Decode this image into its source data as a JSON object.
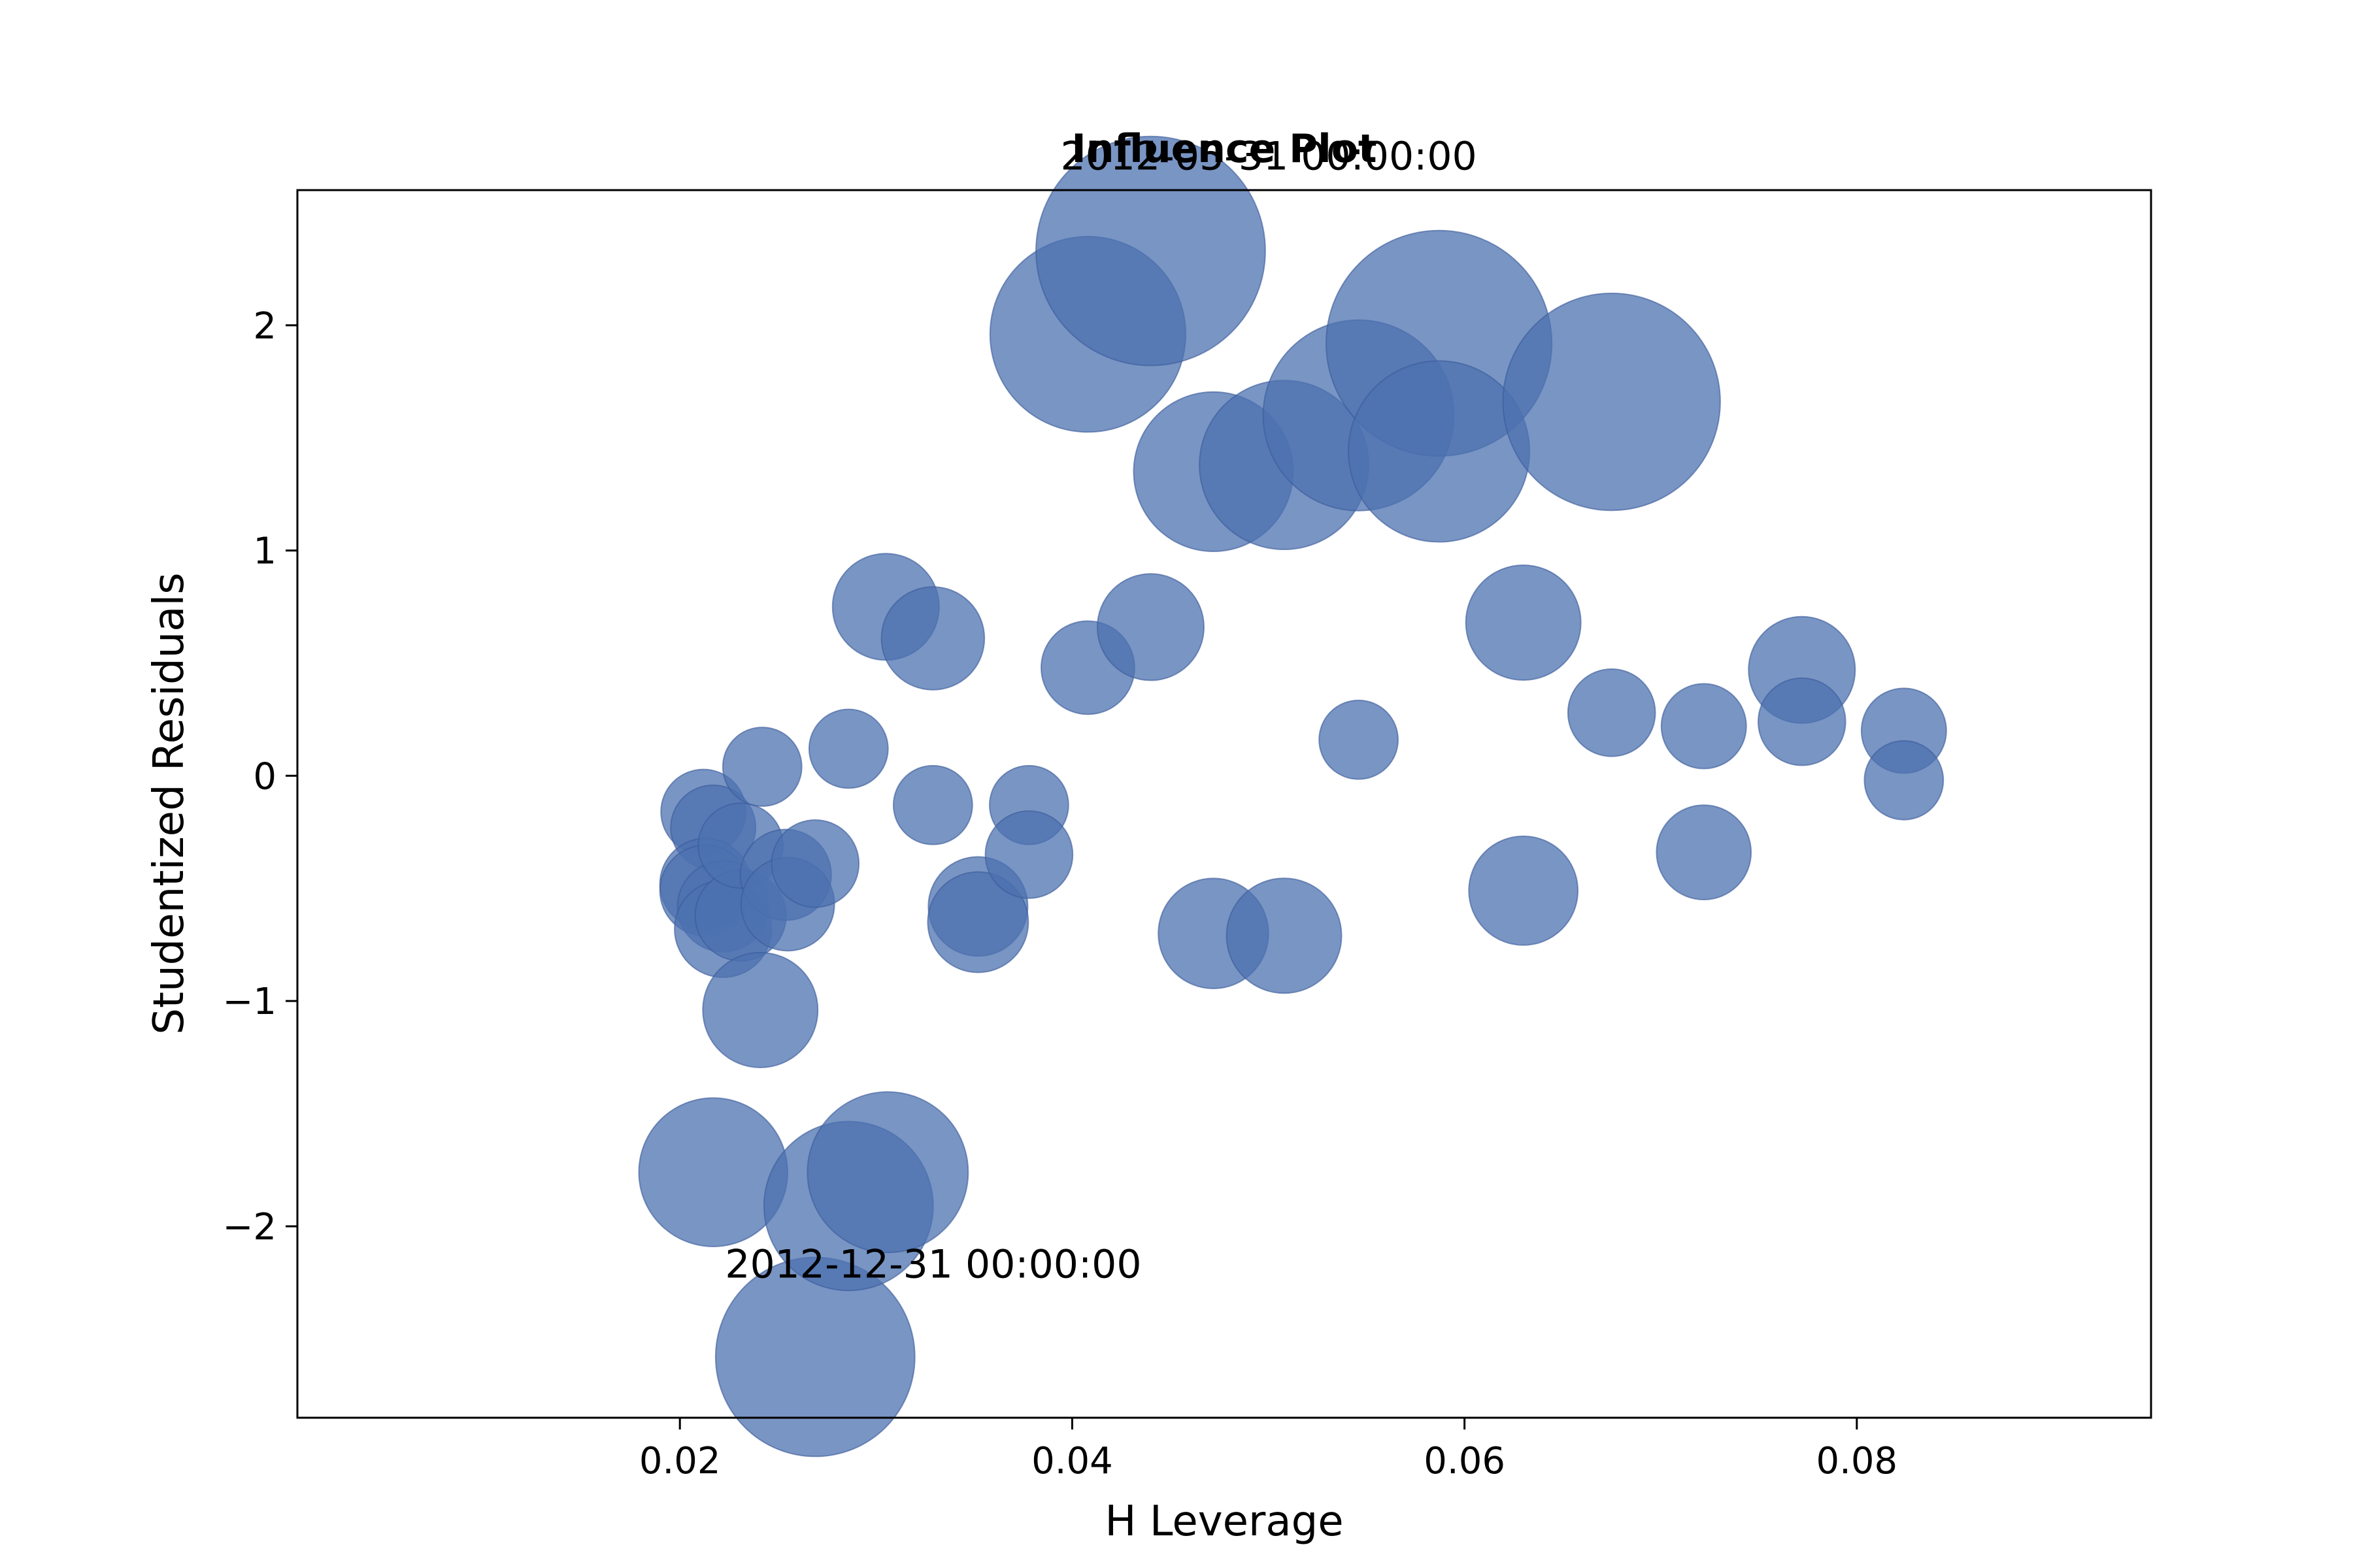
{
  "chart_data": {
    "type": "scatter",
    "title": "Influence Plot",
    "xlabel": "H Leverage",
    "ylabel": "Studentized Residuals",
    "xlim": [
      0.0005,
      0.095
    ],
    "ylim": [
      -2.85,
      2.6
    ],
    "xticks": [
      0.02,
      0.04,
      0.06,
      0.08
    ],
    "xtick_labels": [
      "0.02",
      "0.04",
      "0.06",
      "0.08"
    ],
    "yticks": [
      -2,
      -1,
      0,
      1,
      2
    ],
    "ytick_labels": [
      "−2",
      "−1",
      "0",
      "1",
      "2"
    ],
    "grid": false,
    "marker_color": "#4c72b0",
    "marker_alpha": 0.75,
    "marker_edge_color": "#3a5a9a",
    "points": [
      {
        "x": 0.0212,
        "y": -0.16,
        "size": 0.25
      },
      {
        "x": 0.0217,
        "y": -0.23,
        "size": 0.25
      },
      {
        "x": 0.0213,
        "y": -0.48,
        "size": 0.3
      },
      {
        "x": 0.0213,
        "y": -0.51,
        "size": 0.3
      },
      {
        "x": 0.0222,
        "y": -0.58,
        "size": 0.3
      },
      {
        "x": 0.0222,
        "y": -0.68,
        "size": 0.35
      },
      {
        "x": 0.0231,
        "y": -0.62,
        "size": 0.3
      },
      {
        "x": 0.0231,
        "y": -0.31,
        "size": 0.25
      },
      {
        "x": 0.0242,
        "y": 0.04,
        "size": 0.2
      },
      {
        "x": 0.0241,
        "y": -1.04,
        "size": 0.5
      },
      {
        "x": 0.0217,
        "y": -1.76,
        "size": 0.78
      },
      {
        "x": 0.0254,
        "y": -0.44,
        "size": 0.3
      },
      {
        "x": 0.0255,
        "y": -0.57,
        "size": 0.32
      },
      {
        "x": 0.0269,
        "y": -0.39,
        "size": 0.27
      },
      {
        "x": 0.0269,
        "y": -2.58,
        "size": 1.2
      },
      {
        "x": 0.0286,
        "y": 0.12,
        "size": 0.2
      },
      {
        "x": 0.0286,
        "y": -1.91,
        "size": 0.95
      },
      {
        "x": 0.0305,
        "y": 0.75,
        "size": 0.43
      },
      {
        "x": 0.0306,
        "y": -1.76,
        "size": 0.88
      },
      {
        "x": 0.0329,
        "y": 0.61,
        "size": 0.4
      },
      {
        "x": 0.0329,
        "y": -0.13,
        "size": 0.2
      },
      {
        "x": 0.0352,
        "y": -0.58,
        "size": 0.37
      },
      {
        "x": 0.0352,
        "y": -0.65,
        "size": 0.38
      },
      {
        "x": 0.0378,
        "y": -0.13,
        "size": 0.2
      },
      {
        "x": 0.0378,
        "y": -0.35,
        "size": 0.27
      },
      {
        "x": 0.0408,
        "y": 0.48,
        "size": 0.32
      },
      {
        "x": 0.0408,
        "y": 1.96,
        "size": 1.17
      },
      {
        "x": 0.044,
        "y": 0.66,
        "size": 0.43
      },
      {
        "x": 0.044,
        "y": 2.33,
        "size": 1.45
      },
      {
        "x": 0.0472,
        "y": 1.35,
        "size": 0.87
      },
      {
        "x": 0.0472,
        "y": -0.7,
        "size": 0.46
      },
      {
        "x": 0.0508,
        "y": 1.38,
        "size": 0.95
      },
      {
        "x": 0.0508,
        "y": -0.71,
        "size": 0.5
      },
      {
        "x": 0.0546,
        "y": 1.6,
        "size": 1.13
      },
      {
        "x": 0.0546,
        "y": 0.16,
        "size": 0.2
      },
      {
        "x": 0.0587,
        "y": 1.92,
        "size": 1.42
      },
      {
        "x": 0.0587,
        "y": 1.44,
        "size": 1.05
      },
      {
        "x": 0.063,
        "y": 0.68,
        "size": 0.5
      },
      {
        "x": 0.063,
        "y": -0.51,
        "size": 0.45
      },
      {
        "x": 0.0675,
        "y": 0.28,
        "size": 0.27
      },
      {
        "x": 0.0675,
        "y": 1.66,
        "size": 1.35
      },
      {
        "x": 0.0722,
        "y": 0.22,
        "size": 0.25
      },
      {
        "x": 0.0722,
        "y": -0.34,
        "size": 0.33
      },
      {
        "x": 0.0772,
        "y": 0.47,
        "size": 0.43
      },
      {
        "x": 0.0772,
        "y": 0.24,
        "size": 0.27
      },
      {
        "x": 0.0824,
        "y": 0.2,
        "size": 0.25
      },
      {
        "x": 0.0824,
        "y": -0.02,
        "size": 0.2
      }
    ],
    "annotations": [
      {
        "text": "2012-05-31 00:00:00",
        "x": 0.044,
        "y": 2.75
      },
      {
        "text": "2012-12-31 00:00:00",
        "x": 0.0269,
        "y": -2.17
      }
    ]
  }
}
